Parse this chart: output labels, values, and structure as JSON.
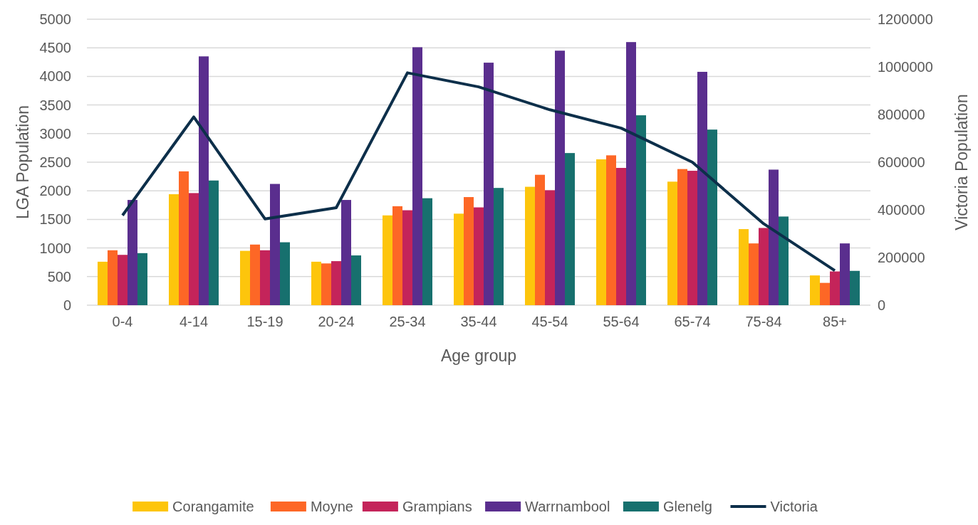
{
  "chart_data": {
    "type": "bar",
    "xlabel": "Age group",
    "ylabel": "LGA Population",
    "y2label": "Victoria Population",
    "categories": [
      "0-4",
      "4-14",
      "15-19",
      "20-24",
      "25-34",
      "35-44",
      "45-54",
      "55-64",
      "65-74",
      "75-84",
      "85+"
    ],
    "series": [
      {
        "name": "Corangamite",
        "color": "#fdc50c",
        "values": [
          760,
          1940,
          950,
          760,
          1570,
          1600,
          2070,
          2550,
          2160,
          1330,
          520
        ]
      },
      {
        "name": "Moyne",
        "color": "#fd6726",
        "values": [
          960,
          2340,
          1060,
          730,
          1730,
          1890,
          2280,
          2620,
          2380,
          1080,
          390
        ]
      },
      {
        "name": "Grampians",
        "color": "#c4245a",
        "values": [
          880,
          1960,
          960,
          770,
          1660,
          1710,
          2010,
          2400,
          2350,
          1350,
          590
        ]
      },
      {
        "name": "Warrnambool",
        "color": "#5a2e8e",
        "values": [
          1840,
          4350,
          2120,
          1840,
          4510,
          4240,
          4450,
          4600,
          4080,
          2370,
          1080
        ]
      },
      {
        "name": "Glenelg",
        "color": "#17706e",
        "values": [
          910,
          2180,
          1100,
          870,
          1870,
          2050,
          2660,
          3320,
          3070,
          1550,
          600
        ]
      },
      {
        "name": "Victoria",
        "type": "line",
        "axis": "y2",
        "color": "#0d2f4a",
        "values": [
          377000,
          790000,
          362000,
          409000,
          975000,
          916000,
          820000,
          743000,
          600000,
          342000,
          145000
        ]
      }
    ],
    "ylim": [
      0,
      5000
    ],
    "yticks": [
      0,
      500,
      1000,
      1500,
      2000,
      2500,
      3000,
      3500,
      4000,
      4500,
      5000
    ],
    "y2lim": [
      0,
      1200000
    ],
    "y2ticks": [
      0,
      200000,
      400000,
      600000,
      800000,
      1000000,
      1200000
    ],
    "grid": "y",
    "legend": "bottom",
    "marker": "none",
    "line_style": "solid"
  }
}
